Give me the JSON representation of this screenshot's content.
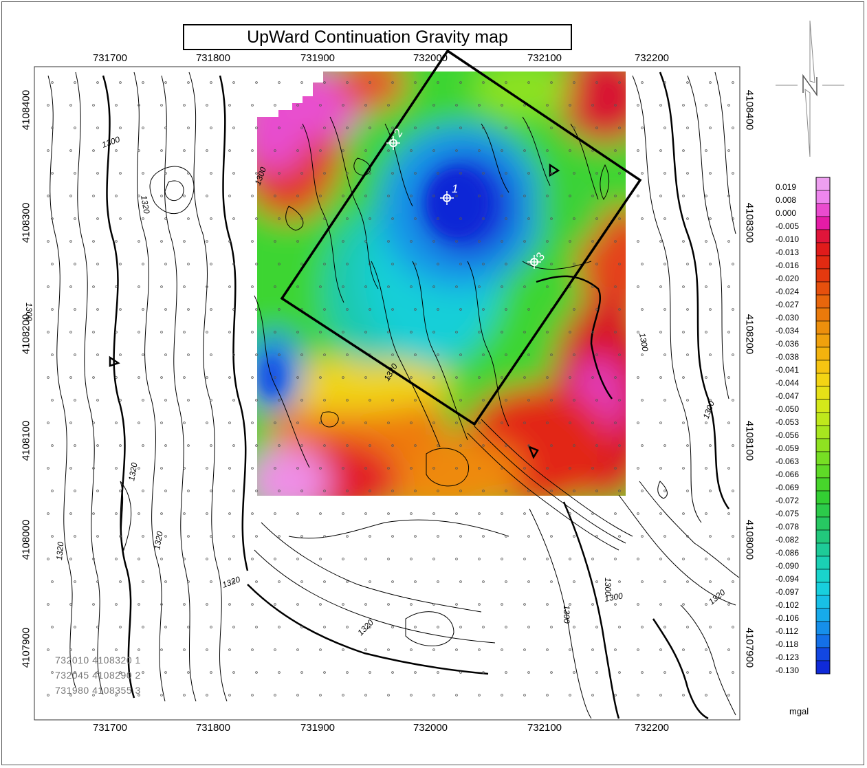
{
  "title": "UpWard Continuation Gravity map",
  "x_ticks": [
    "731700",
    "731800",
    "731900",
    "732000",
    "732100",
    "732200"
  ],
  "y_ticks": [
    "4108400",
    "4108300",
    "4108200",
    "4108100",
    "4108000",
    "4107900"
  ],
  "contour_labels": [
    "1300",
    "1320"
  ],
  "sample_points": [
    "1",
    "2",
    "3"
  ],
  "coordinates_list": [
    "732010 4108320 1",
    "732045 4108290 2",
    "731980 4108355 3"
  ],
  "legend": {
    "unit": "mgal",
    "values": [
      "0.019",
      "0.008",
      "0.000",
      "-0.005",
      "-0.010",
      "-0.013",
      "-0.016",
      "-0.020",
      "-0.024",
      "-0.027",
      "-0.030",
      "-0.034",
      "-0.036",
      "-0.038",
      "-0.041",
      "-0.044",
      "-0.047",
      "-0.050",
      "-0.053",
      "-0.056",
      "-0.059",
      "-0.063",
      "-0.066",
      "-0.069",
      "-0.072",
      "-0.075",
      "-0.078",
      "-0.082",
      "-0.086",
      "-0.090",
      "-0.094",
      "-0.097",
      "-0.102",
      "-0.106",
      "-0.112",
      "-0.118",
      "-0.123",
      "-0.130"
    ],
    "colors": [
      "#ee9ff0",
      "#ee86ee",
      "#ea4ccf",
      "#e51ca6",
      "#e0153a",
      "#e01b1b",
      "#e22a12",
      "#e4390f",
      "#e6500d",
      "#e8660c",
      "#ea7a0b",
      "#ed8f0c",
      "#f0a10d",
      "#f3b30e",
      "#f6c412",
      "#f3d414",
      "#e6e017",
      "#d4e81a",
      "#bfe81c",
      "#a8e61f",
      "#8fe221",
      "#77de24",
      "#5fda27",
      "#47d52b",
      "#33cf33",
      "#2ccb4a",
      "#27c862",
      "#22c87c",
      "#1ecb98",
      "#1bd0b4",
      "#19d4cc",
      "#18cfdd",
      "#18bfe6",
      "#17aaea",
      "#168fea",
      "#1470e8",
      "#1247e2",
      "#0f2ad8"
    ]
  }
}
